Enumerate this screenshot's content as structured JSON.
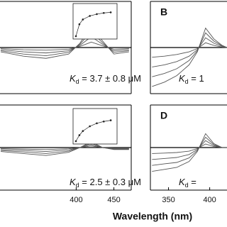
{
  "figure": {
    "xlabel": "Wavelength (nm)"
  },
  "chart_data": [
    {
      "type": "line",
      "annotation": {
        "symbol": "K",
        "subscript": "d",
        "text": " = 3.7 ± 0.8 μM"
      },
      "xlim": [
        299,
        473
      ],
      "ylim": [
        -0.1,
        0.1
      ],
      "x": [
        300,
        330,
        360,
        390,
        405,
        420,
        435,
        450,
        470
      ],
      "series": [
        {
          "color": "#555555",
          "values": [
            -0.0025,
            -0.005,
            -0.006,
            -0.004,
            0.0025,
            0.0125,
            0.004,
            -0.004,
            -0.0025
          ]
        },
        {
          "color": "#555555",
          "values": [
            -0.005,
            -0.01,
            -0.0125,
            -0.0075,
            0.005,
            0.025,
            0.0075,
            -0.0075,
            -0.005
          ]
        },
        {
          "color": "#555555",
          "values": [
            -0.0075,
            -0.015,
            -0.019,
            -0.011,
            0.0075,
            0.0375,
            0.011,
            -0.011,
            -0.0075
          ]
        },
        {
          "color": "#555555",
          "values": [
            -0.01,
            -0.02,
            -0.025,
            -0.015,
            0.01,
            0.05,
            0.015,
            -0.015,
            -0.01
          ]
        }
      ],
      "inset": {
        "type": "line",
        "xlim": [
          0,
          55
        ],
        "ylim": [
          0,
          0.05
        ],
        "x": [
          0,
          5,
          10,
          20,
          30,
          40,
          50
        ],
        "values": [
          0,
          0.02,
          0.028,
          0.034,
          0.037,
          0.039,
          0.04
        ]
      }
    },
    {
      "type": "line",
      "panel": "B",
      "annotation": {
        "symbol": "K",
        "subscript": "d",
        "text": " = 1"
      },
      "xlim": [
        328,
        421
      ],
      "ylim": [
        -0.1,
        0.1
      ],
      "x": [
        330,
        345,
        360,
        375,
        385,
        395,
        405,
        415,
        421
      ],
      "series": [
        {
          "color": "#555555",
          "values": [
            -0.0225,
            -0.02,
            -0.016,
            -0.01,
            -0.0025,
            0.011,
            0.005,
            0.001,
            0
          ]
        },
        {
          "color": "#555555",
          "values": [
            -0.045,
            -0.04,
            -0.0325,
            -0.02,
            -0.005,
            0.0225,
            0.01,
            0.0025,
            0
          ]
        },
        {
          "color": "#555555",
          "values": [
            -0.0675,
            -0.06,
            -0.049,
            -0.03,
            -0.0075,
            0.034,
            0.015,
            0.004,
            0
          ]
        },
        {
          "color": "#555555",
          "values": [
            -0.09,
            -0.08,
            -0.065,
            -0.04,
            -0.01,
            0.045,
            0.02,
            0.005,
            0
          ]
        }
      ]
    },
    {
      "type": "line",
      "annotation": {
        "symbol": "K",
        "subscript": "d",
        "text": " = 2.5 ± 0.3 μM"
      },
      "xlim": [
        299,
        473
      ],
      "ylim": [
        -0.1,
        0.1
      ],
      "xticks": [
        400,
        450
      ],
      "x": [
        300,
        330,
        360,
        390,
        405,
        420,
        435,
        450,
        470
      ],
      "series": [
        {
          "color": "#555555",
          "values": [
            -0.0025,
            -0.004,
            -0.005,
            -0.003,
            0,
            0.004,
            0,
            -0.001,
            -0.001
          ]
        },
        {
          "color": "#555555",
          "values": [
            -0.005,
            -0.0075,
            -0.01,
            -0.006,
            0,
            0.0075,
            0,
            -0.0025,
            -0.0025
          ]
        },
        {
          "color": "#555555",
          "values": [
            -0.0075,
            -0.011,
            -0.015,
            -0.009,
            0,
            0.011,
            0,
            -0.004,
            -0.004
          ]
        },
        {
          "color": "#555555",
          "values": [
            -0.01,
            -0.015,
            -0.02,
            -0.012,
            0,
            0.015,
            0,
            -0.005,
            -0.005
          ]
        }
      ],
      "inset": {
        "type": "line",
        "xlim": [
          0,
          55
        ],
        "ylim": [
          0,
          0.05
        ],
        "x": [
          0,
          5,
          10,
          20,
          30,
          40,
          50
        ],
        "values": [
          0,
          0.01,
          0.017,
          0.025,
          0.03,
          0.033,
          0.035
        ]
      }
    },
    {
      "type": "line",
      "panel": "D",
      "annotation": {
        "symbol": "K",
        "subscript": "d",
        "text": " = "
      },
      "xlim": [
        328,
        421
      ],
      "ylim": [
        -0.1,
        0.1
      ],
      "xticks": [
        350,
        400
      ],
      "x": [
        330,
        345,
        360,
        375,
        385,
        395,
        405,
        415,
        421
      ],
      "series": [
        {
          "color": "#555555",
          "values": [
            -0.015,
            -0.014,
            -0.0125,
            -0.009,
            -0.0025,
            0.009,
            0.0025,
            0,
            0
          ]
        },
        {
          "color": "#555555",
          "values": [
            -0.03,
            -0.0275,
            -0.025,
            -0.0175,
            -0.005,
            0.0175,
            0.005,
            0,
            0
          ]
        },
        {
          "color": "#555555",
          "values": [
            -0.045,
            -0.041,
            -0.0375,
            -0.026,
            -0.0075,
            0.026,
            0.0075,
            0,
            0
          ]
        },
        {
          "color": "#555555",
          "values": [
            -0.06,
            -0.055,
            -0.05,
            -0.035,
            -0.01,
            0.035,
            0.01,
            0,
            0
          ]
        }
      ]
    }
  ]
}
